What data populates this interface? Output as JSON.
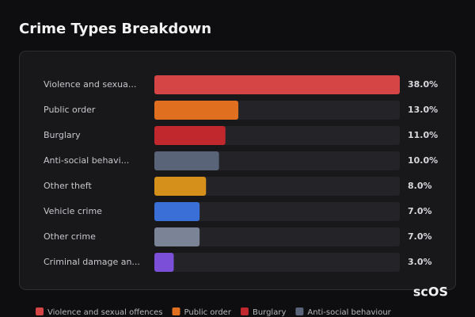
{
  "chart_data": {
    "type": "bar",
    "orientation": "horizontal",
    "title": "Crime Types Breakdown",
    "categories": [
      "Violence and sexua...",
      "Public order",
      "Burglary",
      "Anti-social behavi...",
      "Other theft",
      "Vehicle crime",
      "Other crime",
      "Criminal damage an..."
    ],
    "values": [
      38.0,
      13.0,
      11.0,
      10.0,
      8.0,
      7.0,
      7.0,
      3.0
    ],
    "value_labels": [
      "38.0%",
      "13.0%",
      "11.0%",
      "10.0%",
      "8.0%",
      "7.0%",
      "7.0%",
      "3.0%"
    ],
    "colors": [
      "#d64545",
      "#e07020",
      "#c0282d",
      "#5a6478",
      "#d4901a",
      "#3a6fd8",
      "#7a8496",
      "#7b4fd8"
    ],
    "xlim": [
      0,
      38
    ],
    "legend": [
      "Violence and sexual offences",
      "Public order",
      "Burglary",
      "Anti-social behaviour"
    ],
    "watermark": "scOS"
  }
}
